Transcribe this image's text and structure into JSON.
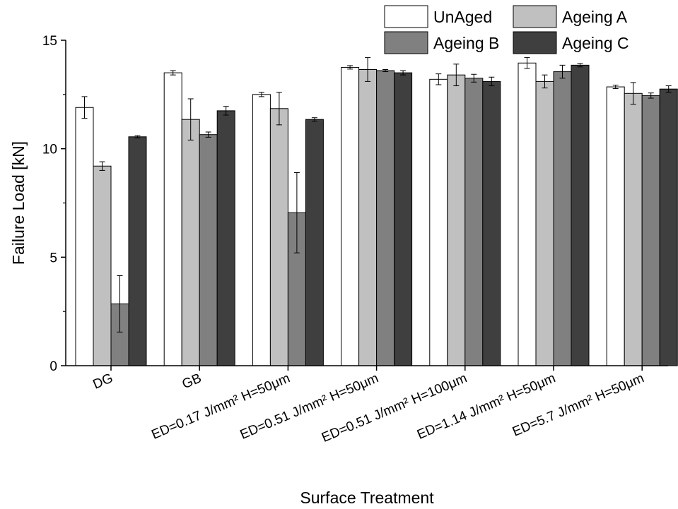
{
  "chart_data": {
    "type": "bar",
    "title": "",
    "xlabel": "Surface Treatment",
    "ylabel": "Failure Load [kN]",
    "ylim": [
      0,
      15
    ],
    "yticks": [
      0,
      5,
      10,
      15
    ],
    "categories": [
      "DG",
      "GB",
      "ED=0.17 J/mm² H=50μm",
      "ED=0.51 J/mm² H=50μm",
      "ED=0.51 J/mm² H=100μm",
      "ED=1.14 J/mm² H=50μm",
      "ED=5.7 J/mm² H=50μm"
    ],
    "series": [
      {
        "name": "UnAged",
        "color": "#ffffff",
        "values": [
          11.9,
          13.5,
          12.5,
          13.75,
          13.2,
          13.95,
          12.85
        ],
        "errors": [
          0.5,
          0.1,
          0.1,
          0.08,
          0.25,
          0.25,
          0.08
        ]
      },
      {
        "name": "Ageing A",
        "color": "#c0c0c0",
        "values": [
          9.2,
          11.35,
          11.85,
          13.65,
          13.4,
          13.1,
          12.55
        ],
        "errors": [
          0.2,
          0.95,
          0.75,
          0.55,
          0.5,
          0.3,
          0.5
        ]
      },
      {
        "name": "Ageing B",
        "color": "#808080",
        "values": [
          2.85,
          10.65,
          7.05,
          13.6,
          13.25,
          13.55,
          12.45
        ],
        "errors": [
          1.3,
          0.12,
          1.85,
          0.05,
          0.18,
          0.3,
          0.12
        ]
      },
      {
        "name": "Ageing C",
        "color": "#3f3f3f",
        "values": [
          10.55,
          11.75,
          11.35,
          13.5,
          13.1,
          13.85,
          12.75
        ],
        "errors": [
          0.05,
          0.2,
          0.08,
          0.1,
          0.2,
          0.08,
          0.15
        ]
      }
    ],
    "legend": "top-right",
    "grid": false
  }
}
